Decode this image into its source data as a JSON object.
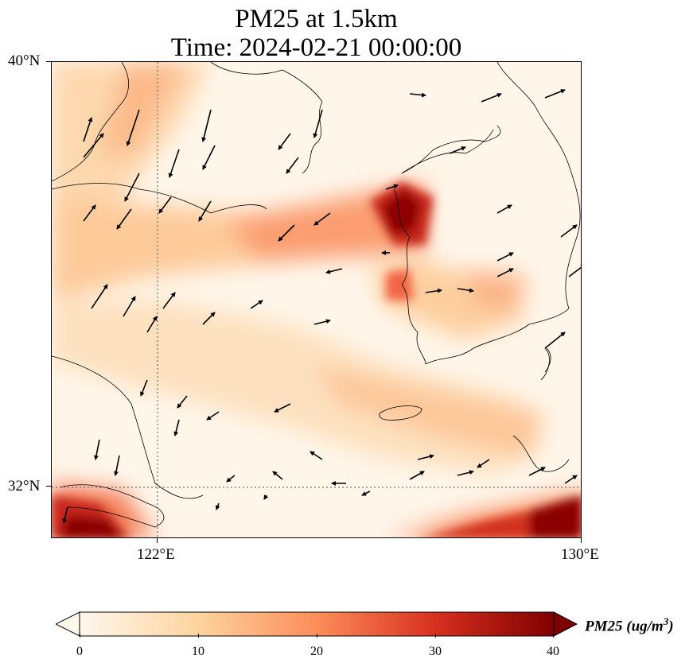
{
  "title": {
    "line1": "PM25 at 1.5km",
    "line2": "Time: 2024-02-21 00:00:00"
  },
  "map": {
    "lon_range": [
      117,
      130
    ],
    "lat_range": [
      30.7,
      40
    ],
    "y_ticks": [
      {
        "lat": 40,
        "label": "40°N"
      },
      {
        "lat": 32,
        "label": "32°N"
      }
    ],
    "x_ticks": [
      {
        "lon": 122,
        "label": "122°E"
      },
      {
        "lon": 130,
        "label": "130°E"
      }
    ],
    "gridlines": {
      "lons": [
        122
      ],
      "lats": [
        32
      ],
      "style": "dotted"
    }
  },
  "colorbar": {
    "label": "PM25 (ug/m$^3$)",
    "label_text": "PM25 (ug/m",
    "label_sup": "3",
    "label_close": ")",
    "min": 0,
    "max": 40,
    "colormap": "OrRd",
    "extend": "both",
    "ticks": [
      {
        "value": 0,
        "label": "0"
      },
      {
        "value": 10,
        "label": "10"
      },
      {
        "value": 20,
        "label": "20"
      },
      {
        "value": 30,
        "label": "30"
      },
      {
        "value": 40,
        "label": "40"
      }
    ],
    "colors": [
      "#fff7ec",
      "#fdd49e",
      "#fc8d59",
      "#d7301f",
      "#7f0000"
    ]
  },
  "colors": {
    "coastline": "#000000",
    "arrow": "#000000",
    "gridline": "#555555"
  }
}
